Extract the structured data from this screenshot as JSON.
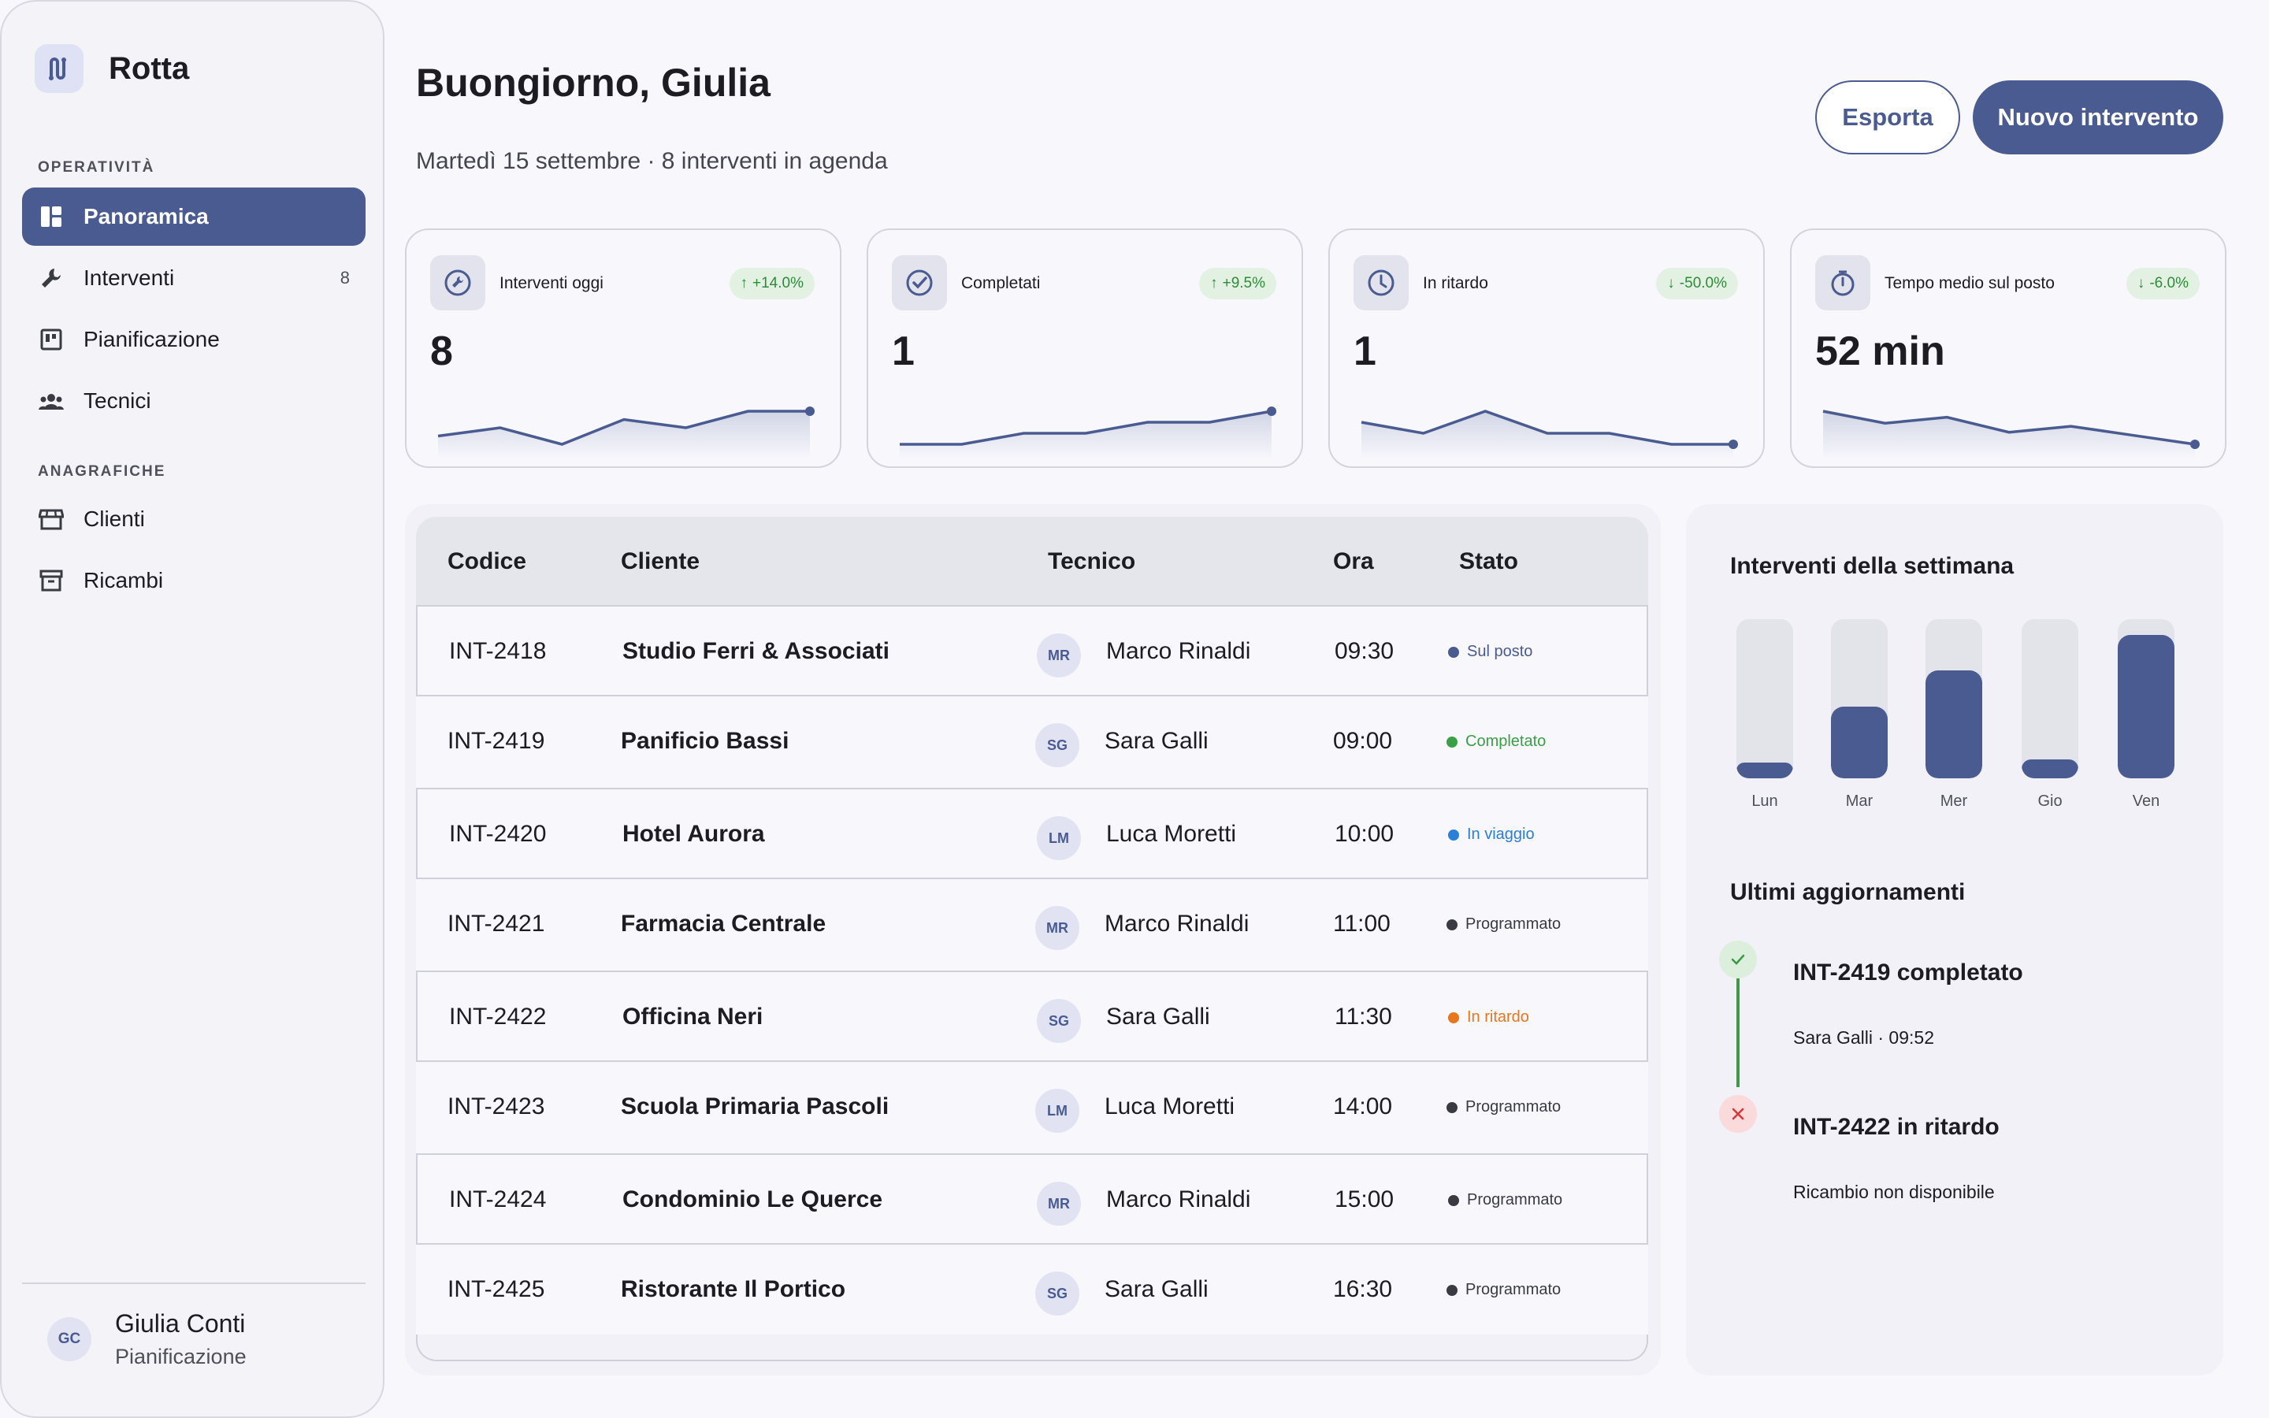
{
  "app": {
    "name": "Rotta"
  },
  "sidebar": {
    "sections": [
      "OPERATIVITÀ",
      "ANAGRAFICHE"
    ],
    "items": [
      {
        "label": "Panoramica",
        "icon": "dashboard-icon",
        "active": true
      },
      {
        "label": "Interventi",
        "icon": "wrench-icon",
        "count": "8"
      },
      {
        "label": "Pianificazione",
        "icon": "calendar-board-icon"
      },
      {
        "label": "Tecnici",
        "icon": "people-icon"
      },
      {
        "label": "Clienti",
        "icon": "storefront-icon"
      },
      {
        "label": "Ricambi",
        "icon": "archive-box-icon"
      }
    ],
    "user": {
      "initials": "GC",
      "name": "Giulia Conti",
      "role": "Pianificazione"
    }
  },
  "header": {
    "greeting": "Buongiorno, Giulia",
    "subtitle": "Martedì 15 settembre · 8 interventi in agenda",
    "export_label": "Esporta",
    "new_label": "Nuovo intervento"
  },
  "kpis": [
    {
      "label": "Interventi oggi",
      "value": "8",
      "delta": "+14.0%",
      "trend": "up",
      "icon": "wrench-circle-icon",
      "spark": [
        6,
        7,
        5,
        8,
        7,
        9,
        9
      ]
    },
    {
      "label": "Completati",
      "value": "1",
      "delta": "+9.5%",
      "trend": "up",
      "icon": "check-circle-icon",
      "spark": [
        1,
        1,
        2,
        2,
        3,
        3,
        4
      ]
    },
    {
      "label": "In ritardo",
      "value": "1",
      "delta": "-50.0%",
      "trend": "down",
      "icon": "clock-icon",
      "spark": [
        3,
        2,
        4,
        2,
        2,
        1,
        1
      ]
    },
    {
      "label": "Tempo medio sul posto",
      "value": "52 min",
      "delta": "-6.0%",
      "trend": "down",
      "icon": "stopwatch-icon",
      "spark": [
        60,
        56,
        58,
        53,
        55,
        52,
        49
      ]
    }
  ],
  "table": {
    "headers": [
      "Codice",
      "Cliente",
      "Tecnico",
      "Ora",
      "Stato"
    ],
    "rows": [
      {
        "code": "INT-2418",
        "client": "Studio Ferri & Associati",
        "initials": "MR",
        "tech": "Marco Rinaldi",
        "time": "09:30",
        "status": "Sul posto",
        "status_color": "#4a5b92"
      },
      {
        "code": "INT-2419",
        "client": "Panificio Bassi",
        "initials": "SG",
        "tech": "Sara Galli",
        "time": "09:00",
        "status": "Completato",
        "status_color": "#3aa047"
      },
      {
        "code": "INT-2420",
        "client": "Hotel Aurora",
        "initials": "LM",
        "tech": "Luca Moretti",
        "time": "10:00",
        "status": "In viaggio",
        "status_color": "#2b7fd6"
      },
      {
        "code": "INT-2421",
        "client": "Farmacia Centrale",
        "initials": "MR",
        "tech": "Marco Rinaldi",
        "time": "11:00",
        "status": "Programmato",
        "status_color": "#3a3a42"
      },
      {
        "code": "INT-2422",
        "client": "Officina Neri",
        "initials": "SG",
        "tech": "Sara Galli",
        "time": "11:30",
        "status": "In ritardo",
        "status_color": "#e8761c"
      },
      {
        "code": "INT-2423",
        "client": "Scuola Primaria Pascoli",
        "initials": "LM",
        "tech": "Luca Moretti",
        "time": "14:00",
        "status": "Programmato",
        "status_color": "#3a3a42"
      },
      {
        "code": "INT-2424",
        "client": "Condominio Le Querce",
        "initials": "MR",
        "tech": "Marco Rinaldi",
        "time": "15:00",
        "status": "Programmato",
        "status_color": "#3a3a42"
      },
      {
        "code": "INT-2425",
        "client": "Ristorante Il Portico",
        "initials": "SG",
        "tech": "Sara Galli",
        "time": "16:30",
        "status": "Programmato",
        "status_color": "#3a3a42"
      }
    ]
  },
  "week": {
    "title": "Interventi della settimana",
    "days": [
      "Lun",
      "Mar",
      "Mer",
      "Gio",
      "Ven"
    ],
    "levels": [
      0.1,
      0.45,
      0.68,
      0.12,
      0.9
    ]
  },
  "updates": {
    "title": "Ultimi aggiornamenti",
    "items": [
      {
        "title": "INT-2419 completato",
        "sub": "Sara Galli · 09:52",
        "kind": "success"
      },
      {
        "title": "INT-2422 in ritardo",
        "sub": "Ricambio non disponibile",
        "kind": "error"
      }
    ]
  },
  "colors": {
    "accent": "#4a5b92",
    "success": "#3aa047",
    "warning": "#e8761c",
    "info": "#2b7fd6"
  }
}
